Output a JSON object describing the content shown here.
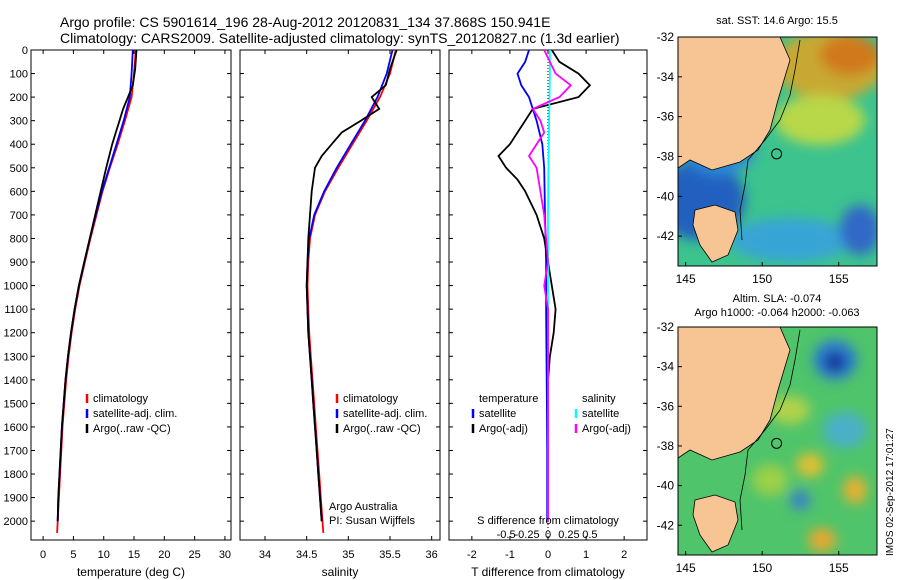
{
  "header": {
    "line1": "Argo profile: CS 5901614_196 28-Aug-2012 20120831_134 37.868S 150.941E",
    "line2": "Climatology: CARS2009. Satellite-adjusted climatology: synTS_20120827.nc (1.3d earlier)"
  },
  "side_label": "IMOS 02-Sep-2012 17:01:27",
  "colors": {
    "clim": "#ff0000",
    "sat": "#0000ff",
    "argo": "#000000",
    "sal_sat": "#00ffff",
    "sal_argo": "#ff00ff",
    "land": "#f7c594"
  },
  "chart_data": [
    {
      "type": "line",
      "xlabel": "temperature (deg C)",
      "xlim": [
        -2,
        31
      ],
      "ylim": [
        2080,
        0
      ],
      "xticks": [
        0,
        5,
        10,
        15,
        20,
        25,
        30
      ],
      "yticks": [
        0,
        100,
        200,
        300,
        400,
        500,
        600,
        700,
        800,
        900,
        1000,
        1100,
        1200,
        1300,
        1400,
        1500,
        1600,
        1700,
        1800,
        1900,
        2000
      ],
      "legend": [
        "climatology",
        "satellite-adj. clim.",
        "Argo(..raw -QC)"
      ],
      "series": [
        {
          "name": "climatology",
          "color": "#ff0000",
          "y": [
            0,
            100,
            200,
            300,
            400,
            500,
            600,
            700,
            800,
            900,
            1000,
            1100,
            1200,
            1300,
            1400,
            1500,
            1600,
            1700,
            1800,
            1900,
            2000,
            2050
          ],
          "x": [
            15.3,
            15.0,
            14.6,
            13.5,
            12.3,
            11.0,
            9.8,
            8.8,
            7.8,
            6.9,
            6.0,
            5.3,
            4.7,
            4.2,
            3.8,
            3.5,
            3.2,
            3.0,
            2.8,
            2.6,
            2.4,
            2.3
          ]
        },
        {
          "name": "satellite-adj. clim.",
          "color": "#0000ff",
          "y": [
            0,
            100,
            200,
            300,
            400,
            500,
            600,
            700,
            800,
            900,
            1000,
            1100,
            1200,
            1300,
            1400,
            1500,
            1600,
            1700,
            1800,
            1900,
            2000
          ],
          "x": [
            14.8,
            14.6,
            14.3,
            13.3,
            12.1,
            10.9,
            9.7,
            8.7,
            7.7,
            6.8,
            5.9,
            5.2,
            4.6,
            4.1,
            3.7,
            3.4,
            3.1,
            2.9,
            2.7,
            2.5,
            2.4
          ]
        },
        {
          "name": "Argo(..raw -QC)",
          "color": "#000000",
          "y": [
            0,
            80,
            150,
            200,
            250,
            300,
            350,
            400,
            450,
            500,
            600,
            700,
            800,
            900,
            1000,
            1100,
            1200,
            1300,
            1400,
            1500,
            1600,
            1700,
            1800,
            1900,
            2000
          ],
          "x": [
            15.4,
            15.2,
            14.8,
            14.0,
            13.2,
            12.6,
            12.0,
            11.4,
            10.9,
            10.4,
            9.5,
            8.6,
            7.7,
            6.8,
            5.9,
            5.2,
            4.6,
            4.1,
            3.7,
            3.4,
            3.1,
            2.9,
            2.7,
            2.5,
            2.4
          ]
        }
      ]
    },
    {
      "type": "line",
      "xlabel": "salinity",
      "xlim": [
        33.7,
        36.1
      ],
      "ylim": [
        2080,
        0
      ],
      "xticks": [
        34,
        34.5,
        35,
        35.5,
        36
      ],
      "legend": [
        "climatology",
        "satellite-adj. clim.",
        "Argo(..raw -QC)"
      ],
      "annotation": [
        "Argo Australia",
        "PI: Susan Wijffels"
      ],
      "series": [
        {
          "name": "climatology",
          "color": "#ff0000",
          "y": [
            0,
            100,
            200,
            300,
            400,
            500,
            600,
            700,
            800,
            900,
            1000,
            1100,
            1200,
            1300,
            1400,
            1500,
            1600,
            1700,
            1800,
            1900,
            2000,
            2050
          ],
          "x": [
            35.57,
            35.5,
            35.38,
            35.22,
            35.05,
            34.88,
            34.72,
            34.6,
            34.54,
            34.52,
            34.51,
            34.52,
            34.53,
            34.55,
            34.57,
            34.59,
            34.61,
            34.63,
            34.65,
            34.67,
            34.69,
            34.7
          ]
        },
        {
          "name": "satellite-adj. clim.",
          "color": "#0000ff",
          "y": [
            0,
            100,
            200,
            300,
            400,
            500,
            600,
            700,
            800,
            900,
            1000,
            1100,
            1200,
            1300,
            1400,
            1500,
            1600,
            1700,
            1800,
            1900,
            2000
          ],
          "x": [
            35.53,
            35.46,
            35.35,
            35.2,
            35.03,
            34.86,
            34.71,
            34.59,
            34.53,
            34.51,
            34.5,
            34.51,
            34.52,
            34.54,
            34.56,
            34.58,
            34.6,
            34.62,
            34.64,
            34.66,
            34.68
          ]
        },
        {
          "name": "Argo(..raw -QC)",
          "color": "#000000",
          "y": [
            0,
            80,
            150,
            200,
            250,
            300,
            350,
            400,
            450,
            500,
            600,
            700,
            800,
            900,
            1000,
            1100,
            1200,
            1300,
            1400,
            1500,
            1600,
            1700,
            1800,
            1900,
            2000
          ],
          "x": [
            35.58,
            35.5,
            35.45,
            35.28,
            35.37,
            35.15,
            34.92,
            34.8,
            34.68,
            34.6,
            34.56,
            34.54,
            34.52,
            34.51,
            34.5,
            34.51,
            34.52,
            34.54,
            34.56,
            34.58,
            34.6,
            34.62,
            34.64,
            34.66,
            34.68
          ]
        }
      ]
    },
    {
      "type": "line",
      "xlabel": "T difference from climatology",
      "toplabel": "S difference from climatology",
      "xlim": [
        -2.6,
        2.6
      ],
      "ylim": [
        2080,
        0
      ],
      "xticks": [
        -2,
        -1,
        0,
        1,
        2
      ],
      "top_ticks": [
        "-0.5",
        "-0.25",
        "0",
        "0.25",
        "0.5"
      ],
      "legend_t": [
        "temperature",
        "satellite",
        "Argo(-adj)"
      ],
      "legend_s": [
        "salinity",
        "satellite",
        "Argo(-adj)"
      ],
      "series": [
        {
          "name": "satellite",
          "group": "temperature",
          "color": "#0000ff",
          "y": [
            0,
            50,
            100,
            150,
            200,
            300,
            400,
            500,
            700,
            900,
            1100,
            1300,
            1500,
            1700,
            1900,
            2000
          ],
          "x": [
            -0.5,
            -0.6,
            -0.8,
            -0.7,
            -0.5,
            -0.3,
            -0.15,
            -0.1,
            -0.08,
            -0.05,
            -0.05,
            -0.04,
            -0.03,
            -0.02,
            -0.02,
            -0.02
          ]
        },
        {
          "name": "Argo(-adj)",
          "group": "temperature",
          "color": "#000000",
          "y": [
            0,
            50,
            100,
            150,
            200,
            250,
            300,
            350,
            400,
            450,
            500,
            550,
            600,
            700,
            800,
            900,
            1000,
            1100,
            1200,
            1300,
            1400,
            1600,
            1800,
            2000
          ],
          "x": [
            0.1,
            0.3,
            0.8,
            1.1,
            0.8,
            -0.4,
            -0.6,
            -0.8,
            -1.0,
            -1.3,
            -1.1,
            -0.8,
            -0.6,
            -0.3,
            -0.1,
            0.0,
            0.1,
            0.2,
            0.15,
            0.05,
            0.0,
            0.0,
            0.0,
            0.0
          ]
        },
        {
          "name": "satellite",
          "group": "salinity",
          "color": "#00ffff",
          "y": [
            0,
            100,
            200,
            300,
            400,
            500,
            700,
            900,
            1100,
            1300,
            1500,
            1700,
            1900,
            2000
          ],
          "x": [
            0.05,
            0.05,
            0.04,
            0.03,
            0.02,
            0.01,
            0.0,
            0.0,
            0.0,
            0.0,
            0.0,
            0.0,
            0.0,
            0.0
          ]
        },
        {
          "name": "Argo(-adj)",
          "group": "salinity",
          "color": "#ff00ff",
          "y": [
            0,
            100,
            150,
            200,
            250,
            300,
            350,
            400,
            450,
            500,
            600,
            700,
            800,
            900,
            1000,
            1100,
            1200,
            1400,
            1600,
            1800,
            2000
          ],
          "x": [
            -0.1,
            0.2,
            0.6,
            0.3,
            -0.4,
            -0.2,
            -0.1,
            -0.3,
            -0.5,
            -0.3,
            -0.2,
            -0.1,
            -0.05,
            0.0,
            -0.1,
            0.0,
            0.0,
            0.0,
            0.0,
            0.0,
            0.0
          ]
        }
      ]
    },
    {
      "type": "heatmap",
      "title": "sat. SST: 14.6  Argo: 15.5",
      "xlim": [
        144.5,
        157.5
      ],
      "ylim": [
        -43.5,
        -32
      ],
      "xticks": [
        145,
        150,
        155
      ],
      "yticks": [
        -32,
        -34,
        -36,
        -38,
        -40,
        -42
      ],
      "argo_position": [
        150.941,
        -37.868
      ]
    },
    {
      "type": "heatmap",
      "title": [
        "Altim. SLA: -0.074",
        "Argo h1000: -0.064 h2000: -0.063"
      ],
      "xlim": [
        144.5,
        157.5
      ],
      "ylim": [
        -43.5,
        -32
      ],
      "xticks": [
        145,
        150,
        155
      ],
      "yticks": [
        -32,
        -34,
        -36,
        -38,
        -40,
        -42
      ],
      "argo_position": [
        150.941,
        -37.868
      ]
    }
  ]
}
